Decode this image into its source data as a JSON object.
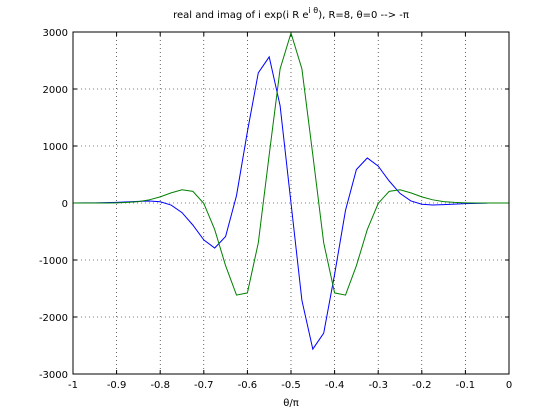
{
  "chart_data": {
    "type": "line",
    "title": [
      "real and imag of i exp(i R e",
      "i θ",
      "), R=8, θ=0 --> -π"
    ],
    "xlabel": "θ/π",
    "x": [
      -1,
      -0.975,
      -0.95,
      -0.925,
      -0.9,
      -0.875,
      -0.85,
      -0.825,
      -0.8,
      -0.775,
      -0.75,
      -0.725,
      -0.7,
      -0.675,
      -0.65,
      -0.625,
      -0.6,
      -0.575,
      -0.55,
      -0.525,
      -0.5,
      -0.475,
      -0.45,
      -0.425,
      -0.4,
      -0.375,
      -0.35,
      -0.325,
      -0.3,
      -0.275,
      -0.25,
      -0.225,
      -0.2,
      -0.175,
      -0.15,
      -0.125,
      -0.1,
      -0.075,
      -0.05,
      -0.025,
      0
    ],
    "series": [
      {
        "color": "#0000ff",
        "values": [
          1,
          2,
          3,
          6,
          12,
          19,
          28,
          34,
          21,
          -36,
          -168,
          -388,
          -647,
          -790,
          -587,
          130,
          1252,
          2284,
          2563,
          1707,
          0,
          -1707,
          -2563,
          -2284,
          -1252,
          -130,
          587,
          790,
          647,
          388,
          168,
          36,
          -21,
          -34,
          -28,
          -19,
          -12,
          -6,
          -3,
          null,
          null
        ]
      },
      {
        "color": "#008000",
        "values": [
          0,
          0,
          0,
          0,
          3,
          10,
          25,
          56,
          108,
          177,
          232,
          204,
          -7,
          -466,
          -1100,
          -1616,
          -1577,
          -699,
          845,
          2353,
          2981,
          2353,
          845,
          -699,
          -1577,
          -1616,
          -1100,
          -466,
          -7,
          204,
          232,
          177,
          108,
          56,
          25,
          10,
          3,
          0,
          0,
          0,
          0
        ]
      }
    ],
    "xlim": [
      -1,
      0
    ],
    "xticks": [
      -1,
      -0.9,
      -0.8,
      -0.7,
      -0.6,
      -0.5,
      -0.4,
      -0.3,
      -0.2,
      -0.1,
      0
    ],
    "ylim": [
      -3000,
      3000
    ],
    "yticks": [
      -3000,
      -2000,
      -1000,
      0,
      1000,
      2000,
      3000
    ],
    "grid": true
  }
}
